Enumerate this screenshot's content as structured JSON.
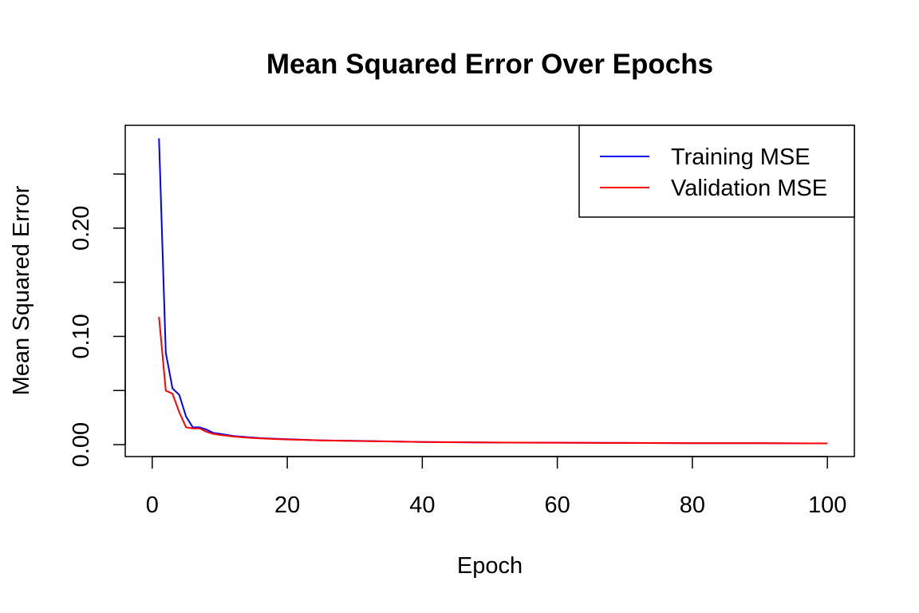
{
  "chart_data": {
    "type": "line",
    "title": "Mean Squared Error Over Epochs",
    "xlabel": "Epoch",
    "ylabel": "Mean Squared Error",
    "xlim": [
      -4,
      104
    ],
    "ylim": [
      -0.011,
      0.295
    ],
    "x_ticks": [
      0,
      20,
      40,
      60,
      80,
      100
    ],
    "x_tick_labels": [
      "0",
      "20",
      "40",
      "60",
      "80",
      "100"
    ],
    "y_ticks": [
      0.0,
      0.05,
      0.1,
      0.15,
      0.2,
      0.25
    ],
    "y_tick_labels": [
      "0.00",
      "",
      "0.10",
      "",
      "0.20",
      ""
    ],
    "grid": false,
    "legend_position": "top-right",
    "series": [
      {
        "name": "Training MSE",
        "color": "#0000ff",
        "x": [
          1,
          2,
          3,
          4,
          5,
          6,
          7,
          8,
          9,
          10,
          12,
          14,
          16,
          18,
          20,
          25,
          30,
          40,
          50,
          60,
          70,
          80,
          90,
          100
        ],
        "y": [
          0.283,
          0.085,
          0.052,
          0.046,
          0.026,
          0.016,
          0.016,
          0.014,
          0.011,
          0.01,
          0.008,
          0.007,
          0.006,
          0.0055,
          0.005,
          0.004,
          0.0035,
          0.0025,
          0.002,
          0.0018,
          0.0016,
          0.0014,
          0.0013,
          0.0012
        ]
      },
      {
        "name": "Validation MSE",
        "color": "#ff0000",
        "x": [
          1,
          2,
          3,
          4,
          5,
          6,
          7,
          8,
          9,
          10,
          12,
          14,
          16,
          18,
          20,
          25,
          30,
          40,
          50,
          60,
          70,
          80,
          90,
          100
        ],
        "y": [
          0.118,
          0.05,
          0.047,
          0.03,
          0.016,
          0.015,
          0.015,
          0.012,
          0.01,
          0.009,
          0.0075,
          0.0065,
          0.0058,
          0.0052,
          0.0048,
          0.004,
          0.0034,
          0.0025,
          0.002,
          0.0018,
          0.0016,
          0.0014,
          0.0013,
          0.0012
        ]
      }
    ]
  }
}
